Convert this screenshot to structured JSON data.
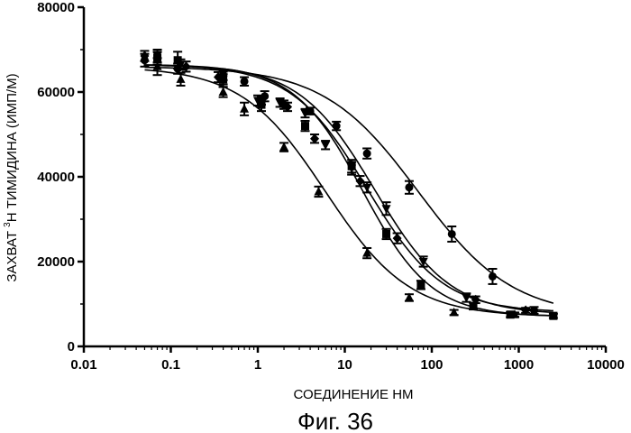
{
  "chart_data": {
    "type": "scatter",
    "title": "",
    "xlabel": "СОЕДИНЕНИЕ НМ",
    "ylabel_main": "ЗАХВАТ ",
    "ylabel_sup": "3",
    "ylabel_rest": "Н ТИМИДИНА (ИМП/М)",
    "xscale": "log",
    "xlim": [
      0.01,
      10000
    ],
    "ylim": [
      0,
      80000
    ],
    "x_ticks": [
      0.01,
      0.1,
      1,
      10,
      100,
      1000,
      10000
    ],
    "x_tick_labels": [
      "0.01",
      "0.1",
      "1",
      "10",
      "100",
      "1000",
      "10000"
    ],
    "y_ticks": [
      0,
      20000,
      40000,
      60000,
      80000
    ],
    "y_tick_labels": [
      "0",
      "20000",
      "40000",
      "60000",
      "80000"
    ],
    "grid": false,
    "legend": "none",
    "series": [
      {
        "marker": "circle",
        "x": [
          0.05,
          0.12,
          0.4,
          0.7,
          1.2,
          2,
          4,
          8,
          18,
          55,
          170,
          500,
          1500
        ],
        "y": [
          67500,
          65500,
          64000,
          62500,
          59000,
          57000,
          55500,
          52000,
          45500,
          37500,
          26500,
          16500,
          8500
        ],
        "err": [
          1500,
          1200,
          1200,
          1000,
          1200,
          1000,
          800,
          1000,
          1200,
          1500,
          1800,
          1800,
          800
        ],
        "fit": {
          "top": 66000,
          "bottom": 7000,
          "ec50": 70,
          "hill": 0.8
        }
      },
      {
        "marker": "square",
        "x": [
          0.07,
          0.12,
          0.4,
          1.1,
          3.5,
          12,
          30,
          75,
          300,
          800,
          2500
        ],
        "y": [
          68000,
          67500,
          63000,
          57000,
          52000,
          42500,
          26500,
          14500,
          9500,
          7500,
          7200
        ],
        "err": [
          1500,
          2000,
          1800,
          1500,
          1200,
          1500,
          1200,
          1000,
          800,
          600,
          500
        ],
        "fit": {
          "top": 66500,
          "bottom": 7000,
          "ec50": 16,
          "hill": 1.1
        }
      },
      {
        "marker": "diamond",
        "x": [
          0.05,
          0.15,
          0.35,
          1.1,
          2.2,
          4.5,
          15,
          40,
          320,
          1200
        ],
        "y": [
          68500,
          66000,
          63500,
          58000,
          56500,
          49000,
          39000,
          25500,
          11000,
          8500
        ],
        "err": [
          1200,
          1200,
          1200,
          1000,
          1000,
          1000,
          1200,
          1200,
          800,
          600
        ],
        "fit": {
          "top": 66500,
          "bottom": 8000,
          "ec50": 18,
          "hill": 1.0
        }
      },
      {
        "marker": "triangle-down",
        "x": [
          0.07,
          0.13,
          0.4,
          1.0,
          1.8,
          3.5,
          6,
          12,
          18,
          30,
          80,
          250
        ],
        "y": [
          68500,
          66500,
          63000,
          58000,
          57500,
          55000,
          47500,
          42000,
          37500,
          32500,
          20000,
          11500
        ],
        "err": [
          1500,
          1200,
          1200,
          1200,
          1000,
          1000,
          1000,
          1500,
          1200,
          1500,
          1200,
          1000
        ],
        "fit": {
          "top": 66500,
          "bottom": 7500,
          "ec50": 22,
          "hill": 1.0
        }
      },
      {
        "marker": "triangle-up",
        "x": [
          0.07,
          0.13,
          0.4,
          0.7,
          2,
          5,
          18,
          55,
          180,
          900
        ],
        "y": [
          66000,
          63000,
          60000,
          56000,
          47000,
          36500,
          22000,
          11500,
          8000,
          7500
        ],
        "err": [
          2000,
          1500,
          1200,
          1500,
          1000,
          1200,
          1200,
          800,
          600,
          500
        ],
        "fit": {
          "top": 66000,
          "bottom": 7000,
          "ec50": 6,
          "hill": 0.9
        }
      }
    ]
  },
  "caption": "Фиг. 36"
}
